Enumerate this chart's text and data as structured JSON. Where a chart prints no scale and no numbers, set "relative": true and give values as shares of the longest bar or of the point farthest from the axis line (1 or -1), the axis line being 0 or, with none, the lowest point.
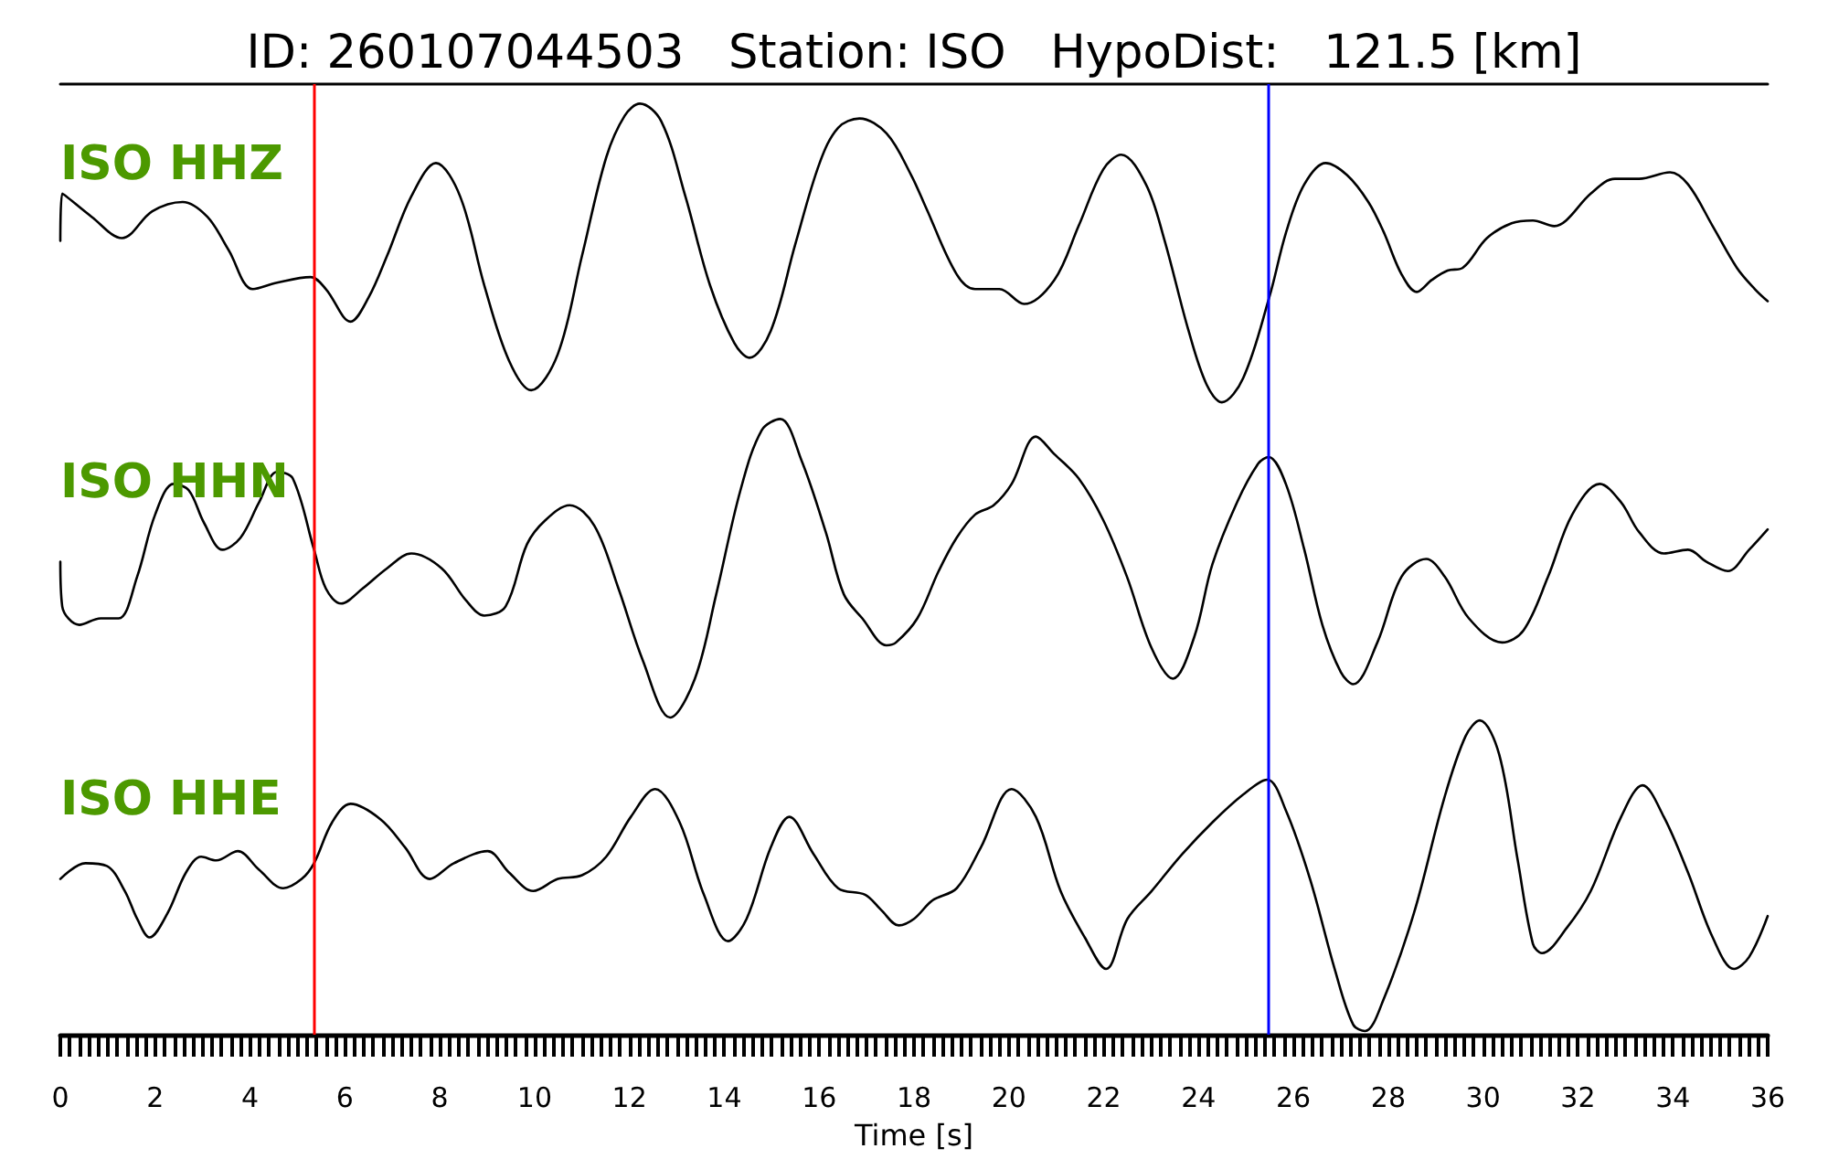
{
  "chart_data": {
    "type": "line",
    "title": "ID: 260107044503   Station: ISO   HypoDist:   121.5 [km]",
    "xlabel": "Time [s]",
    "relative": true,
    "xlim": [
      0,
      36
    ],
    "tick_labels": "x",
    "xticks": [
      0,
      {
        "value": 0.2,
        "label": null
      },
      {
        "value": 0.4,
        "label": null
      },
      {
        "value": 0.6,
        "label": null
      },
      {
        "value": 0.8,
        "label": null
      },
      {
        "value": 1,
        "label": null
      },
      {
        "value": 1.2,
        "label": null
      },
      {
        "value": 1.4,
        "label": null
      },
      {
        "value": 1.6,
        "label": null
      },
      {
        "value": 1.8,
        "label": null
      },
      2,
      {
        "value": 2.2,
        "label": null
      },
      {
        "value": 2.4,
        "label": null
      },
      {
        "value": 2.6,
        "label": null
      },
      {
        "value": 2.8,
        "label": null
      },
      {
        "value": 3,
        "label": null
      },
      {
        "value": 3.2,
        "label": null
      },
      {
        "value": 3.4,
        "label": null
      },
      {
        "value": 3.6,
        "label": null
      },
      {
        "value": 3.8,
        "label": null
      },
      4,
      {
        "value": 4.2,
        "label": null
      },
      {
        "value": 4.4,
        "label": null
      },
      {
        "value": 4.6,
        "label": null
      },
      {
        "value": 4.8,
        "label": null
      },
      {
        "value": 5,
        "label": null
      },
      {
        "value": 5.2,
        "label": null
      },
      {
        "value": 5.4,
        "label": null
      },
      {
        "value": 5.6,
        "label": null
      },
      {
        "value": 5.8,
        "label": null
      },
      6,
      {
        "value": 6.2,
        "label": null
      },
      {
        "value": 6.4,
        "label": null
      },
      {
        "value": 6.6,
        "label": null
      },
      {
        "value": 6.8,
        "label": null
      },
      {
        "value": 7,
        "label": null
      },
      {
        "value": 7.2,
        "label": null
      },
      {
        "value": 7.4,
        "label": null
      },
      {
        "value": 7.6,
        "label": null
      },
      {
        "value": 7.8,
        "label": null
      },
      8,
      {
        "value": 8.2,
        "label": null
      },
      {
        "value": 8.4,
        "label": null
      },
      {
        "value": 8.6,
        "label": null
      },
      {
        "value": 8.8,
        "label": null
      },
      {
        "value": 9,
        "label": null
      },
      {
        "value": 9.2,
        "label": null
      },
      {
        "value": 9.4,
        "label": null
      },
      {
        "value": 9.6,
        "label": null
      },
      {
        "value": 9.8,
        "label": null
      },
      10,
      {
        "value": 10.2,
        "label": null
      },
      {
        "value": 10.4,
        "label": null
      },
      {
        "value": 10.6,
        "label": null
      },
      {
        "value": 10.8,
        "label": null
      },
      {
        "value": 11,
        "label": null
      },
      {
        "value": 11.2,
        "label": null
      },
      {
        "value": 11.4,
        "label": null
      },
      {
        "value": 11.6,
        "label": null
      },
      {
        "value": 11.8,
        "label": null
      },
      12,
      {
        "value": 12.2,
        "label": null
      },
      {
        "value": 12.4,
        "label": null
      },
      {
        "value": 12.6,
        "label": null
      },
      {
        "value": 12.8,
        "label": null
      },
      {
        "value": 13,
        "label": null
      },
      {
        "value": 13.2,
        "label": null
      },
      {
        "value": 13.4,
        "label": null
      },
      {
        "value": 13.6,
        "label": null
      },
      {
        "value": 13.8,
        "label": null
      },
      14,
      {
        "value": 14.2,
        "label": null
      },
      {
        "value": 14.4,
        "label": null
      },
      {
        "value": 14.6,
        "label": null
      },
      {
        "value": 14.8,
        "label": null
      },
      {
        "value": 15,
        "label": null
      },
      {
        "value": 15.2,
        "label": null
      },
      {
        "value": 15.4,
        "label": null
      },
      {
        "value": 15.6,
        "label": null
      },
      {
        "value": 15.8,
        "label": null
      },
      16,
      {
        "value": 16.2,
        "label": null
      },
      {
        "value": 16.4,
        "label": null
      },
      {
        "value": 16.6,
        "label": null
      },
      {
        "value": 16.8,
        "label": null
      },
      {
        "value": 17,
        "label": null
      },
      {
        "value": 17.2,
        "label": null
      },
      {
        "value": 17.4,
        "label": null
      },
      {
        "value": 17.6,
        "label": null
      },
      {
        "value": 17.8,
        "label": null
      },
      18,
      {
        "value": 18.2,
        "label": null
      },
      {
        "value": 18.4,
        "label": null
      },
      {
        "value": 18.6,
        "label": null
      },
      {
        "value": 18.8,
        "label": null
      },
      {
        "value": 19,
        "label": null
      },
      {
        "value": 19.2,
        "label": null
      },
      {
        "value": 19.4,
        "label": null
      },
      {
        "value": 19.6,
        "label": null
      },
      {
        "value": 19.8,
        "label": null
      },
      20,
      {
        "value": 20.2,
        "label": null
      },
      {
        "value": 20.4,
        "label": null
      },
      {
        "value": 20.6,
        "label": null
      },
      {
        "value": 20.8,
        "label": null
      },
      {
        "value": 21,
        "label": null
      },
      {
        "value": 21.2,
        "label": null
      },
      {
        "value": 21.4,
        "label": null
      },
      {
        "value": 21.6,
        "label": null
      },
      {
        "value": 21.8,
        "label": null
      },
      22,
      {
        "value": 22.2,
        "label": null
      },
      {
        "value": 22.4,
        "label": null
      },
      {
        "value": 22.6,
        "label": null
      },
      {
        "value": 22.8,
        "label": null
      },
      {
        "value": 23,
        "label": null
      },
      {
        "value": 23.2,
        "label": null
      },
      {
        "value": 23.4,
        "label": null
      },
      {
        "value": 23.6,
        "label": null
      },
      {
        "value": 23.8,
        "label": null
      },
      24,
      {
        "value": 24.2,
        "label": null
      },
      {
        "value": 24.4,
        "label": null
      },
      {
        "value": 24.6,
        "label": null
      },
      {
        "value": 24.8,
        "label": null
      },
      {
        "value": 25,
        "label": null
      },
      {
        "value": 25.2,
        "label": null
      },
      {
        "value": 25.4,
        "label": null
      },
      {
        "value": 25.6,
        "label": null
      },
      {
        "value": 25.8,
        "label": null
      },
      26,
      {
        "value": 26.2,
        "label": null
      },
      {
        "value": 26.4,
        "label": null
      },
      {
        "value": 26.6,
        "label": null
      },
      {
        "value": 26.8,
        "label": null
      },
      {
        "value": 27,
        "label": null
      },
      {
        "value": 27.2,
        "label": null
      },
      {
        "value": 27.4,
        "label": null
      },
      {
        "value": 27.6,
        "label": null
      },
      {
        "value": 27.8,
        "label": null
      },
      28,
      {
        "value": 28.2,
        "label": null
      },
      {
        "value": 28.4,
        "label": null
      },
      {
        "value": 28.6,
        "label": null
      },
      {
        "value": 28.8,
        "label": null
      },
      {
        "value": 29,
        "label": null
      },
      {
        "value": 29.2,
        "label": null
      },
      {
        "value": 29.4,
        "label": null
      },
      {
        "value": 29.6,
        "label": null
      },
      {
        "value": 29.8,
        "label": null
      },
      30,
      {
        "value": 30.2,
        "label": null
      },
      {
        "value": 30.4,
        "label": null
      },
      {
        "value": 30.6,
        "label": null
      },
      {
        "value": 30.8,
        "label": null
      },
      {
        "value": 31,
        "label": null
      },
      {
        "value": 31.2,
        "label": null
      },
      {
        "value": 31.4,
        "label": null
      },
      {
        "value": 31.6,
        "label": null
      },
      {
        "value": 31.8,
        "label": null
      },
      32,
      {
        "value": 32.2,
        "label": null
      },
      {
        "value": 32.4,
        "label": null
      },
      {
        "value": 32.6,
        "label": null
      },
      {
        "value": 32.8,
        "label": null
      },
      {
        "value": 33,
        "label": null
      },
      {
        "value": 33.2,
        "label": null
      },
      {
        "value": 33.4,
        "label": null
      },
      {
        "value": 33.6,
        "label": null
      },
      {
        "value": 33.8,
        "label": null
      },
      34,
      {
        "value": 34.2,
        "label": null
      },
      {
        "value": 34.4,
        "label": null
      },
      {
        "value": 34.6,
        "label": null
      },
      {
        "value": 34.8,
        "label": null
      },
      {
        "value": 35,
        "label": null
      },
      {
        "value": 35.2,
        "label": null
      },
      {
        "value": 35.4,
        "label": null
      },
      {
        "value": 35.6,
        "label": null
      },
      {
        "value": 35.8,
        "label": null
      },
      36
    ],
    "series": [
      {
        "name": "ISO HHZ",
        "color": "#000000",
        "x": [
          0,
          0.04,
          0.66,
          1.3,
          1.94,
          2.58,
          3.1,
          3.55,
          4.06,
          4.57,
          5.28,
          5.6,
          6.12,
          6.5,
          6.89,
          7.4,
          7.92,
          8.43,
          8.94,
          9.46,
          9.93,
          10.49,
          11.0,
          11.51,
          11.9,
          12.22,
          12.67,
          13.18,
          13.7,
          14.21,
          14.53,
          14.98,
          15.5,
          16.01,
          16.4,
          16.85,
          17.42,
          17.94,
          18.26,
          18.9,
          19.29,
          19.8,
          20.32,
          20.96,
          21.47,
          21.99,
          22.37,
          22.89,
          23.27,
          23.79,
          24.17,
          24.49,
          24.94,
          25.49,
          25.85,
          26.23,
          26.68,
          27.13,
          27.58,
          27.9,
          28.28,
          28.6,
          28.92,
          29.25,
          29.57,
          30.08,
          30.6,
          31.05,
          31.5,
          31.75,
          32.27,
          32.78,
          33.29,
          33.94,
          34.32,
          34.84,
          35.35,
          35.73,
          36
        ],
        "values": [
          0.852,
          0.903,
          0.878,
          0.855,
          0.884,
          0.894,
          0.878,
          0.842,
          0.8,
          0.807,
          0.813,
          0.8,
          0.765,
          0.791,
          0.836,
          0.9,
          0.936,
          0.9,
          0.804,
          0.723,
          0.691,
          0.73,
          0.836,
          0.942,
          0.987,
          1,
          0.981,
          0.9,
          0.804,
          0.742,
          0.726,
          0.755,
          0.849,
          0.936,
          0.974,
          0.984,
          0.968,
          0.923,
          0.887,
          0.816,
          0.8,
          0.8,
          0.784,
          0.81,
          0.868,
          0.929,
          0.945,
          0.913,
          0.855,
          0.755,
          0.697,
          0.678,
          0.704,
          0.791,
          0.862,
          0.913,
          0.936,
          0.923,
          0.894,
          0.862,
          0.816,
          0.797,
          0.81,
          0.82,
          0.823,
          0.855,
          0.871,
          0.874,
          0.868,
          0.874,
          0.903,
          0.919,
          0.919,
          0.926,
          0.913,
          0.868,
          0.823,
          0.8,
          0.787
        ]
      },
      {
        "name": "ISO HHN",
        "color": "#000000",
        "x": [
          0,
          0.04,
          0.4,
          0.85,
          1.23,
          1.62,
          2.0,
          2.39,
          2.71,
          3.03,
          3.42,
          3.8,
          4.19,
          4.57,
          4.9,
          5.35,
          5.6,
          5.92,
          6.37,
          6.89,
          7.4,
          8.04,
          8.56,
          8.94,
          9.39,
          9.84,
          10.23,
          10.74,
          11.26,
          11.77,
          12.28,
          12.86,
          13.38,
          13.83,
          14.34,
          14.79,
          15.18,
          15.63,
          16.14,
          16.52,
          16.91,
          17.42,
          17.62,
          18.07,
          18.52,
          18.9,
          19.29,
          19.68,
          20.06,
          20.57,
          20.96,
          21.47,
          21.99,
          22.49,
          23.01,
          23.46,
          23.91,
          24.29,
          24.81,
          25.26,
          25.48,
          25.84,
          26.23,
          26.61,
          27.0,
          27.26,
          27.77,
          28.28,
          28.8,
          29.19,
          29.7,
          30.4,
          30.85,
          31.37,
          31.88,
          32.46,
          32.91,
          33.29,
          33.81,
          34.32,
          34.71,
          35.16,
          35.61,
          36
        ],
        "values": [
          0.506,
          0.458,
          0.438,
          0.445,
          0.445,
          0.49,
          0.557,
          0.59,
          0.583,
          0.548,
          0.519,
          0.532,
          0.57,
          0.603,
          0.596,
          0.519,
          0.477,
          0.461,
          0.477,
          0.499,
          0.515,
          0.499,
          0.464,
          0.448,
          0.458,
          0.525,
          0.551,
          0.567,
          0.545,
          0.477,
          0.4,
          0.338,
          0.38,
          0.471,
          0.583,
          0.648,
          0.66,
          0.615,
          0.538,
          0.471,
          0.445,
          0.416,
          0.419,
          0.445,
          0.496,
          0.532,
          0.557,
          0.567,
          0.59,
          0.641,
          0.622,
          0.596,
          0.551,
          0.49,
          0.413,
          0.38,
          0.425,
          0.503,
          0.57,
          0.612,
          0.619,
          0.59,
          0.519,
          0.438,
          0.387,
          0.374,
          0.419,
          0.49,
          0.509,
          0.49,
          0.445,
          0.419,
          0.432,
          0.49,
          0.557,
          0.59,
          0.57,
          0.538,
          0.515,
          0.519,
          0.506,
          0.496,
          0.519,
          0.541
        ]
      },
      {
        "name": "ISO HHE",
        "color": "#000000",
        "x": [
          0,
          0.53,
          0.98,
          1.36,
          1.62,
          1.88,
          2.26,
          2.65,
          2.97,
          3.29,
          3.74,
          4.19,
          4.7,
          5.09,
          5.35,
          5.73,
          6.12,
          6.76,
          7.27,
          7.79,
          8.3,
          9.01,
          9.46,
          9.97,
          10.49,
          11.0,
          11.51,
          12.03,
          12.54,
          13.06,
          13.57,
          14.08,
          14.47,
          14.98,
          15.37,
          15.88,
          16.4,
          16.97,
          17.3,
          17.68,
          18.0,
          18.39,
          18.9,
          19.41,
          20.06,
          20.57,
          21.09,
          21.6,
          22.05,
          22.5,
          23.01,
          23.66,
          24.29,
          24.94,
          25.45,
          25.84,
          26.35,
          26.87,
          27.26,
          27.51,
          27.9,
          28.54,
          29.18,
          29.63,
          29.93,
          30.34,
          30.73,
          31.05,
          31.24,
          31.76,
          32.27,
          32.91,
          33.36,
          33.81,
          34.32,
          34.84,
          35.29,
          35.61,
          36
        ],
        "values": [
          0.164,
          0.181,
          0.178,
          0.151,
          0.121,
          0.101,
          0.127,
          0.171,
          0.188,
          0.184,
          0.194,
          0.174,
          0.154,
          0.164,
          0.181,
          0.225,
          0.245,
          0.228,
          0.198,
          0.164,
          0.181,
          0.194,
          0.171,
          0.151,
          0.164,
          0.168,
          0.188,
          0.231,
          0.261,
          0.225,
          0.147,
          0.097,
          0.121,
          0.198,
          0.231,
          0.191,
          0.154,
          0.147,
          0.131,
          0.114,
          0.121,
          0.141,
          0.154,
          0.198,
          0.261,
          0.231,
          0.151,
          0.101,
          0.067,
          0.121,
          0.151,
          0.191,
          0.225,
          0.255,
          0.271,
          0.238,
          0.164,
          0.067,
          0.007,
          0,
          0.034,
          0.127,
          0.251,
          0.318,
          0.335,
          0.298,
          0.184,
          0.094,
          0.084,
          0.111,
          0.151,
          0.231,
          0.265,
          0.231,
          0.171,
          0.101,
          0.067,
          0.08,
          0.124
        ]
      }
    ],
    "ref_lines": [
      {
        "axis": "x",
        "value": 5.36,
        "color": "#ff0000"
      },
      {
        "axis": "x",
        "value": 25.48,
        "color": "#0000ff"
      }
    ]
  }
}
